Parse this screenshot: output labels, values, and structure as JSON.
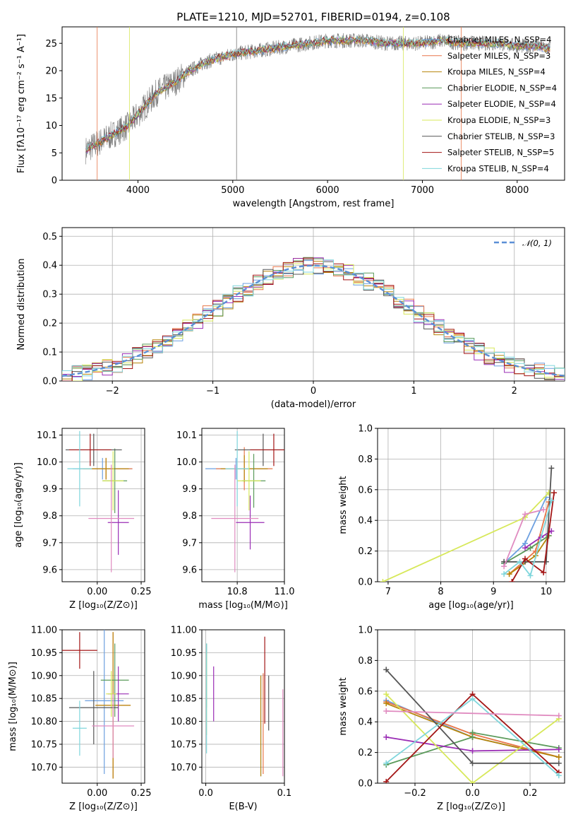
{
  "figure_title": "PLATE=1210, MJD=52701, FIBERID=0194, z=0.108",
  "colors": [
    "#6c9fe0",
    "#e8774a",
    "#b8860b",
    "#5a9a5a",
    "#9a2db5",
    "#d7e85a",
    "#555555",
    "#a31515",
    "#7fd6dc",
    "#e08bc0"
  ],
  "chart_data": [
    {
      "id": "spectrum",
      "type": "line",
      "title": "PLATE=1210, MJD=52701, FIBERID=0194, z=0.108",
      "xlabel": "wavelength [Angstrom, rest frame]",
      "ylabel": "Flux [fλ10⁻¹⁷ erg cm⁻² s⁻¹ A⁻¹]",
      "xlim": [
        3200,
        8500
      ],
      "ylim": [
        0,
        28
      ],
      "xticks": [
        4000,
        5000,
        6000,
        7000,
        8000
      ],
      "yticks": [
        0,
        5,
        10,
        15,
        20,
        25
      ],
      "grid": false,
      "legend_position": "right",
      "data_x": [
        3450,
        3500,
        3600,
        3700,
        3800,
        3900,
        4000,
        4100,
        4200,
        4300,
        4400,
        4500,
        4600,
        4700,
        4800,
        4900,
        5000,
        5200,
        5400,
        5600,
        5800,
        6000,
        6200,
        6400,
        6600,
        6800,
        7000,
        7200,
        7400,
        7600,
        7800,
        8000,
        8200,
        8350
      ],
      "data_y": [
        5.5,
        6,
        7,
        8,
        9,
        10,
        12,
        14,
        16,
        17,
        18,
        19.5,
        20.5,
        21.5,
        22,
        22.5,
        23,
        23.5,
        24,
        24.5,
        25,
        25.5,
        25.5,
        25.5,
        25,
        25,
        25,
        25.5,
        25,
        25,
        25,
        24.5,
        24.5,
        24
      ],
      "series": [
        {
          "name": "Chabrier MILES, N_SSP=4"
        },
        {
          "name": "Salpeter MILES, N_SSP=3"
        },
        {
          "name": "Kroupa MILES, N_SSP=4"
        },
        {
          "name": "Chabrier ELODIE, N_SSP=4"
        },
        {
          "name": "Salpeter ELODIE, N_SSP=4"
        },
        {
          "name": "Kroupa ELODIE, N_SSP=3"
        },
        {
          "name": "Chabrier STELIB, N_SSP=3"
        },
        {
          "name": "Salpeter STELIB, N_SSP=5"
        },
        {
          "name": "Kroupa STELIB, N_SSP=4"
        }
      ]
    },
    {
      "id": "residuals",
      "type": "line",
      "xlabel": "(data-model)/error",
      "ylabel": "Normed distribution",
      "xlim": [
        -2.5,
        2.5
      ],
      "ylim": [
        0,
        0.53
      ],
      "xticks": [
        -2,
        -1,
        0,
        1,
        2
      ],
      "yticks": [
        0.0,
        0.1,
        0.2,
        0.3,
        0.4,
        0.5
      ],
      "grid": true,
      "legend": "𝒩(0, 1)",
      "legend_position": "top-right"
    },
    {
      "id": "age-z",
      "type": "scatter",
      "xlabel": "Z [log₁₀(Z/Z⊙)]",
      "ylabel": "age  [log₁₀(age/yr)]",
      "xlim": [
        -0.2,
        0.27
      ],
      "ylim": [
        9.555,
        10.125
      ],
      "xticks": [
        0.0,
        0.25
      ],
      "yticks": [
        9.6,
        9.7,
        9.8,
        9.9,
        10.0,
        10.1
      ],
      "grid": true,
      "points": [
        {
          "x": 0.03,
          "y": 9.975,
          "xerr": 0.17,
          "yerr": 0.04,
          "c": 0
        },
        {
          "x": 0.05,
          "y": 9.975,
          "xerr": 0.15,
          "yerr": 0.04,
          "c": 1
        },
        {
          "x": 0.05,
          "y": 9.975,
          "xerr": 0.13,
          "yerr": 0.04,
          "c": 2
        },
        {
          "x": 0.1,
          "y": 9.93,
          "xerr": 0.07,
          "yerr": 0.12,
          "c": 3
        },
        {
          "x": 0.12,
          "y": 9.775,
          "xerr": 0.06,
          "yerr": 0.12,
          "c": 4
        },
        {
          "x": 0.09,
          "y": 9.93,
          "xerr": 0.06,
          "yerr": 0.11,
          "c": 5
        },
        {
          "x": -0.02,
          "y": 10.045,
          "xerr": 0.16,
          "yerr": 0.06,
          "c": 6
        },
        {
          "x": -0.04,
          "y": 10.045,
          "xerr": 0.12,
          "yerr": 0.06,
          "c": 7
        },
        {
          "x": -0.1,
          "y": 9.975,
          "xerr": 0.07,
          "yerr": 0.14,
          "c": 8
        },
        {
          "x": 0.08,
          "y": 9.79,
          "xerr": 0.13,
          "yerr": 0.2,
          "c": 9
        }
      ]
    },
    {
      "id": "age-mass",
      "type": "scatter",
      "xlabel": "mass [log₁₀(M/M⊙)]",
      "ylabel": "",
      "xlim": [
        10.65,
        11.0
      ],
      "ylim": [
        9.555,
        10.125
      ],
      "xticks": [
        10.8,
        11.0
      ],
      "yticks": [
        9.6,
        9.7,
        9.8,
        9.9,
        10.0,
        10.1
      ],
      "grid": true,
      "points": [
        {
          "x": 10.795,
          "y": 9.975,
          "xerr": 0.13,
          "yerr": 0.04,
          "c": 0
        },
        {
          "x": 10.83,
          "y": 9.975,
          "xerr": 0.12,
          "yerr": 0.08,
          "c": 1
        },
        {
          "x": 10.83,
          "y": 9.975,
          "xerr": 0.1,
          "yerr": 0.05,
          "c": 2
        },
        {
          "x": 10.87,
          "y": 9.93,
          "xerr": 0.05,
          "yerr": 0.1,
          "c": 3
        },
        {
          "x": 10.855,
          "y": 9.775,
          "xerr": 0.06,
          "yerr": 0.1,
          "c": 4
        },
        {
          "x": 10.85,
          "y": 9.93,
          "xerr": 0.05,
          "yerr": 0.11,
          "c": 5
        },
        {
          "x": 10.91,
          "y": 10.045,
          "xerr": 0.12,
          "yerr": 0.06,
          "c": 6
        },
        {
          "x": 10.955,
          "y": 10.045,
          "xerr": 0.1,
          "yerr": 0.06,
          "c": 7
        },
        {
          "x": 10.8,
          "y": 9.975,
          "xerr": 0.05,
          "yerr": 0.14,
          "c": 8
        },
        {
          "x": 10.79,
          "y": 9.79,
          "xerr": 0.1,
          "yerr": 0.2,
          "c": 9
        }
      ]
    },
    {
      "id": "weight-age",
      "type": "line",
      "xlabel": "age  [log₁₀(age/yr)]",
      "ylabel": "mass weight",
      "xlim": [
        6.8,
        10.35
      ],
      "ylim": [
        0,
        1.0
      ],
      "xticks": [
        7,
        8,
        9,
        10
      ],
      "yticks": [
        0.0,
        0.2,
        0.4,
        0.6,
        0.8,
        1.0
      ],
      "grid": true,
      "series": [
        {
          "c": 0,
          "x": [
            9.2,
            9.6,
            10.0
          ],
          "y": [
            0.12,
            0.25,
            0.55
          ]
        },
        {
          "c": 1,
          "x": [
            9.3,
            9.8,
            10.05
          ],
          "y": [
            0.05,
            0.2,
            0.52
          ]
        },
        {
          "c": 2,
          "x": [
            9.3,
            9.8,
            10.05
          ],
          "y": [
            0.05,
            0.17,
            0.3
          ]
        },
        {
          "c": 3,
          "x": [
            9.2,
            9.7,
            10.05
          ],
          "y": [
            0.12,
            0.22,
            0.3
          ]
        },
        {
          "c": 4,
          "x": [
            9.6,
            9.9,
            10.1
          ],
          "y": [
            0.22,
            0.29,
            0.33
          ]
        },
        {
          "c": 5,
          "x": [
            6.9,
            9.6,
            10.05
          ],
          "y": [
            0.0,
            0.42,
            0.58
          ]
        },
        {
          "c": 6,
          "x": [
            9.2,
            9.6,
            10.0,
            10.1
          ],
          "y": [
            0.13,
            0.13,
            0.13,
            0.74
          ]
        },
        {
          "c": 7,
          "x": [
            9.35,
            9.6,
            9.95,
            10.15
          ],
          "y": [
            0.0,
            0.15,
            0.06,
            0.58
          ]
        },
        {
          "c": 8,
          "x": [
            9.2,
            9.5,
            9.7,
            10.1
          ],
          "y": [
            0.05,
            0.13,
            0.04,
            0.53
          ]
        },
        {
          "c": 9,
          "x": [
            9.2,
            9.6,
            9.95
          ],
          "y": [
            0.1,
            0.44,
            0.47
          ]
        }
      ]
    },
    {
      "id": "mass-z",
      "type": "scatter",
      "xlabel": "Z [log₁₀(Z/Z⊙)]",
      "ylabel": "mass [log₁₀(M/M⊙)]",
      "xlim": [
        -0.2,
        0.27
      ],
      "ylim": [
        10.665,
        11.0
      ],
      "xticks": [
        0.0,
        0.25
      ],
      "yticks": [
        10.7,
        10.75,
        10.8,
        10.85,
        10.9,
        10.95,
        11.0
      ],
      "grid": true,
      "points": [
        {
          "x": 0.04,
          "y": 10.845,
          "xerr": 0.11,
          "yerr": 0.16,
          "c": 0
        },
        {
          "x": 0.09,
          "y": 10.835,
          "xerr": 0.1,
          "yerr": 0.16,
          "c": 1
        },
        {
          "x": 0.09,
          "y": 10.835,
          "xerr": 0.1,
          "yerr": 0.16,
          "c": 2
        },
        {
          "x": 0.1,
          "y": 10.89,
          "xerr": 0.08,
          "yerr": 0.08,
          "c": 3
        },
        {
          "x": 0.12,
          "y": 10.86,
          "xerr": 0.06,
          "yerr": 0.06,
          "c": 4
        },
        {
          "x": 0.08,
          "y": 10.86,
          "xerr": 0.03,
          "yerr": 0.05,
          "c": 5
        },
        {
          "x": -0.02,
          "y": 10.83,
          "xerr": 0.14,
          "yerr": 0.08,
          "c": 6
        },
        {
          "x": -0.1,
          "y": 10.955,
          "xerr": 0.1,
          "yerr": 0.04,
          "c": 7
        },
        {
          "x": -0.1,
          "y": 10.785,
          "xerr": 0.04,
          "yerr": 0.06,
          "c": 8
        },
        {
          "x": 0.09,
          "y": 10.79,
          "xerr": 0.12,
          "yerr": 0.07,
          "c": 9
        }
      ]
    },
    {
      "id": "mass-ebv",
      "type": "scatter",
      "xlabel": "E(B-V)",
      "ylabel": "",
      "xlim": [
        -0.005,
        0.1
      ],
      "ylim": [
        10.665,
        11.0
      ],
      "xticks": [
        0.0,
        0.1
      ],
      "yticks": [
        10.7,
        10.75,
        10.8,
        10.85,
        10.9,
        10.95,
        11.0
      ],
      "grid": true,
      "points": [
        {
          "x": 0.07,
          "y": 10.79,
          "xerr": 0,
          "yerr": 0.11,
          "c": 0
        },
        {
          "x": 0.073,
          "y": 10.795,
          "xerr": 0,
          "yerr": 0.11,
          "c": 1
        },
        {
          "x": 0.07,
          "y": 10.79,
          "xerr": 0,
          "yerr": 0.11,
          "c": 2
        },
        {
          "x": 0.001,
          "y": 10.9,
          "xerr": 0,
          "yerr": 0.07,
          "c": 3
        },
        {
          "x": 0.01,
          "y": 10.86,
          "xerr": 0,
          "yerr": 0.06,
          "c": 4
        },
        {
          "x": 0.001,
          "y": 10.86,
          "xerr": 0,
          "yerr": 0.09,
          "c": 5
        },
        {
          "x": 0.08,
          "y": 10.84,
          "xerr": 0,
          "yerr": 0.06,
          "c": 6
        },
        {
          "x": 0.075,
          "y": 10.89,
          "xerr": 0,
          "yerr": 0.095,
          "c": 7
        },
        {
          "x": 0.001,
          "y": 10.85,
          "xerr": 0,
          "yerr": 0.12,
          "c": 8
        },
        {
          "x": 0.098,
          "y": 10.775,
          "xerr": 0,
          "yerr": 0.095,
          "c": 9
        }
      ]
    },
    {
      "id": "weight-z",
      "type": "line",
      "xlabel": "Z [log₁₀(Z/Z⊙)]",
      "ylabel": "mass weight",
      "xlim": [
        -0.33,
        0.32
      ],
      "ylim": [
        0,
        1.0
      ],
      "xticks": [
        -0.2,
        0.0,
        0.2
      ],
      "yticks": [
        0.0,
        0.2,
        0.4,
        0.6,
        0.8,
        1.0
      ],
      "grid": true,
      "series": [
        {
          "c": 0,
          "x": [
            -0.3,
            0.0,
            0.3
          ],
          "y": [
            0.54,
            0.3,
            0.17
          ]
        },
        {
          "c": 1,
          "x": [
            -0.3,
            0.0,
            0.3
          ],
          "y": [
            0.53,
            0.32,
            0.17
          ]
        },
        {
          "c": 2,
          "x": [
            -0.3,
            0.0,
            0.3
          ],
          "y": [
            0.52,
            0.3,
            0.17
          ]
        },
        {
          "c": 3,
          "x": [
            -0.3,
            0.0,
            0.0,
            0.3
          ],
          "y": [
            0.12,
            0.3,
            0.33,
            0.23
          ]
        },
        {
          "c": 4,
          "x": [
            -0.3,
            0.0,
            0.3
          ],
          "y": [
            0.3,
            0.21,
            0.22
          ]
        },
        {
          "c": 5,
          "x": [
            -0.3,
            0.0,
            0.3
          ],
          "y": [
            0.58,
            0.0,
            0.42
          ]
        },
        {
          "c": 6,
          "x": [
            -0.3,
            0.0,
            0.3
          ],
          "y": [
            0.74,
            0.13,
            0.13
          ]
        },
        {
          "c": 7,
          "x": [
            -0.3,
            0.0,
            0.3
          ],
          "y": [
            0.01,
            0.58,
            0.07
          ]
        },
        {
          "c": 8,
          "x": [
            -0.3,
            0.0,
            0.3
          ],
          "y": [
            0.13,
            0.55,
            0.05
          ]
        },
        {
          "c": 9,
          "x": [
            -0.3,
            0.3
          ],
          "y": [
            0.47,
            0.44
          ]
        }
      ]
    }
  ]
}
